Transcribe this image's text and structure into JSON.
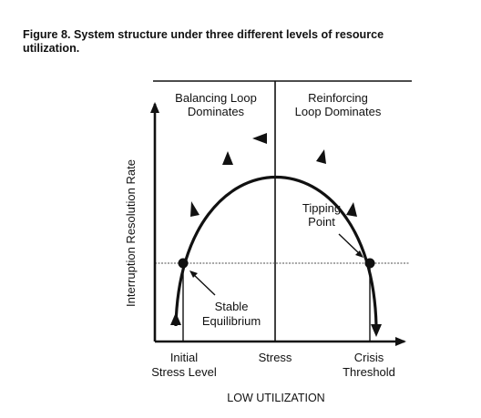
{
  "figure": {
    "title_line1": "Figure 8. System structure under three different levels of resource",
    "title_line2": "utilization.",
    "y_axis_label": "Interruption Resolution Rate",
    "x_axis_label": "LOW UTILIZATION",
    "regions": {
      "left_line1": "Balancing Loop",
      "left_line2": "Dominates",
      "right_line1": "Reinforcing",
      "right_line2": "Loop Dominates"
    },
    "x_ticks": {
      "initial_line1": "Initial",
      "initial_line2": "Stress Level",
      "middle": "Stress",
      "crisis_line1": "Crisis",
      "crisis_line2": "Threshold"
    },
    "annotations": {
      "tipping_line1": "Tipping",
      "tipping_line2": "Point",
      "stable_line1": "Stable",
      "stable_line2": "Equilibrium"
    },
    "colors": {
      "ink": "#111111",
      "gridline": "#8a8a8a"
    }
  }
}
